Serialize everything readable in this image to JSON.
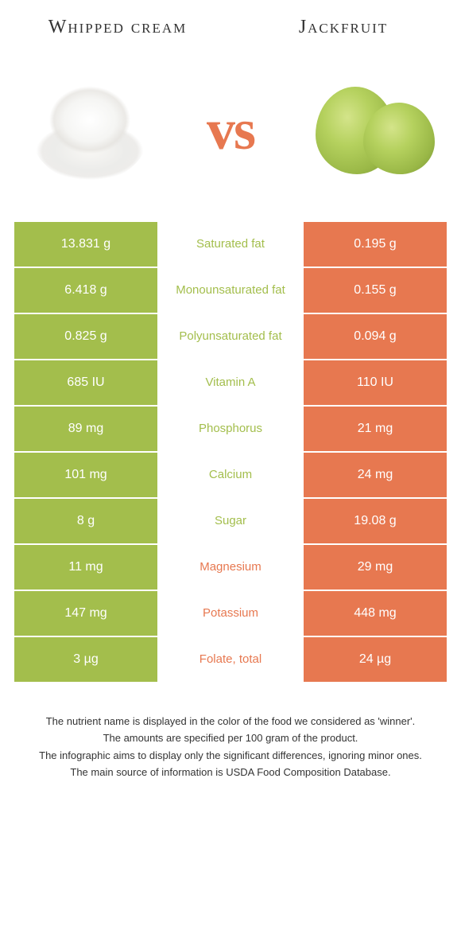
{
  "colors": {
    "green": "#a3be4c",
    "orange": "#e77850",
    "white": "#ffffff"
  },
  "header": {
    "left_title": "Whipped cream",
    "right_title": "Jackfruit",
    "vs_label": "vs"
  },
  "rows": [
    {
      "left": "13.831 g",
      "label": "Saturated fat",
      "right": "0.195 g",
      "winner": "left"
    },
    {
      "left": "6.418 g",
      "label": "Monounsaturated fat",
      "right": "0.155 g",
      "winner": "left"
    },
    {
      "left": "0.825 g",
      "label": "Polyunsaturated fat",
      "right": "0.094 g",
      "winner": "left"
    },
    {
      "left": "685 IU",
      "label": "Vitamin A",
      "right": "110 IU",
      "winner": "left"
    },
    {
      "left": "89 mg",
      "label": "Phosphorus",
      "right": "21 mg",
      "winner": "left"
    },
    {
      "left": "101 mg",
      "label": "Calcium",
      "right": "24 mg",
      "winner": "left"
    },
    {
      "left": "8 g",
      "label": "Sugar",
      "right": "19.08 g",
      "winner": "left"
    },
    {
      "left": "11 mg",
      "label": "Magnesium",
      "right": "29 mg",
      "winner": "right"
    },
    {
      "left": "147 mg",
      "label": "Potassium",
      "right": "448 mg",
      "winner": "right"
    },
    {
      "left": "3 µg",
      "label": "Folate, total",
      "right": "24 µg",
      "winner": "right"
    }
  ],
  "footer": {
    "line1": "The nutrient name is displayed in the color of the food we considered as 'winner'.",
    "line2": "The amounts are specified per 100 gram of the product.",
    "line3": "The infographic aims to display only the significant differences, ignoring minor ones.",
    "line4": "The main source of information is USDA Food Composition Database."
  }
}
